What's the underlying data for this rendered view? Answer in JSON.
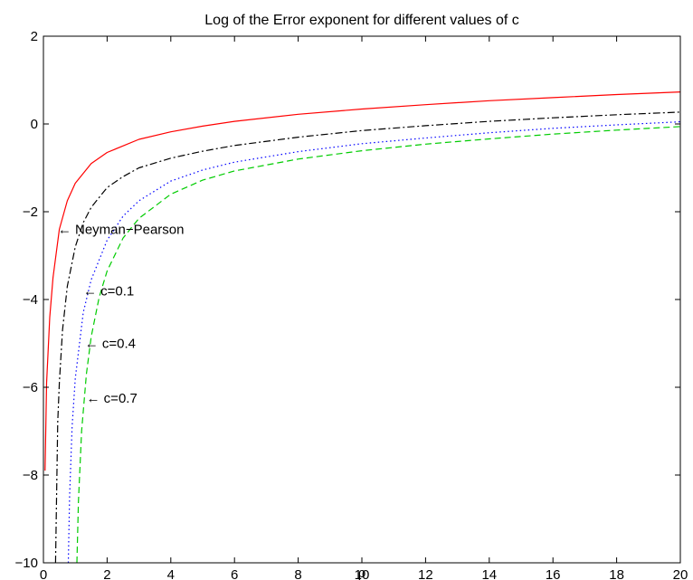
{
  "chart_data": {
    "type": "line",
    "title": "Log of the Error exponent for different values of c",
    "xlabel": "ρ",
    "ylabel": "",
    "xlim": [
      0,
      20
    ],
    "ylim": [
      -10,
      2
    ],
    "xticks": [
      0,
      2,
      4,
      6,
      8,
      10,
      12,
      14,
      16,
      18,
      20
    ],
    "yticks": [
      -10,
      -8,
      -6,
      -4,
      -2,
      0,
      2
    ],
    "xtick_labels": [
      "0",
      "2",
      "4",
      "6",
      "8",
      "10",
      "12",
      "14",
      "16",
      "18",
      "20"
    ],
    "ytick_labels": [
      "−10",
      "−8",
      "−6",
      "−4",
      "−2",
      "0",
      "2"
    ],
    "grid": false,
    "series": [
      {
        "name": "Neyman−Pearson",
        "color": "#ff0000",
        "dash": "solid",
        "x": [
          0.05,
          0.1,
          0.2,
          0.3,
          0.5,
          0.75,
          1,
          1.5,
          2,
          3,
          4,
          5,
          6,
          8,
          10,
          12,
          14,
          16,
          18,
          20
        ],
        "y": [
          -7.9,
          -5.9,
          -4.4,
          -3.5,
          -2.4,
          -1.75,
          -1.35,
          -0.9,
          -0.65,
          -0.35,
          -0.18,
          -0.05,
          0.06,
          0.22,
          0.34,
          0.44,
          0.53,
          0.6,
          0.67,
          0.73
        ]
      },
      {
        "name": "c=0.1",
        "color": "#000000",
        "dash": "dashdot",
        "x": [
          0.38,
          0.45,
          0.5,
          0.6,
          0.75,
          1,
          1.25,
          1.5,
          2,
          2.5,
          3,
          4,
          5,
          6,
          8,
          10,
          12,
          14,
          16,
          18,
          20
        ],
        "y": [
          -10,
          -6.8,
          -5.9,
          -4.7,
          -3.7,
          -2.8,
          -2.25,
          -1.9,
          -1.45,
          -1.2,
          -1.0,
          -0.78,
          -0.62,
          -0.49,
          -0.3,
          -0.15,
          -0.04,
          0.06,
          0.14,
          0.21,
          0.27
        ]
      },
      {
        "name": "c=0.4",
        "color": "#0000ff",
        "dash": "dotted",
        "x": [
          0.78,
          0.82,
          0.9,
          1,
          1.25,
          1.5,
          2,
          2.5,
          3,
          4,
          5,
          6,
          8,
          10,
          12,
          14,
          16,
          18,
          20
        ],
        "y": [
          -10,
          -8.5,
          -6.9,
          -5.8,
          -4.3,
          -3.55,
          -2.65,
          -2.1,
          -1.75,
          -1.3,
          -1.05,
          -0.87,
          -0.63,
          -0.45,
          -0.32,
          -0.2,
          -0.1,
          -0.02,
          0.05
        ]
      },
      {
        "name": "c=0.7",
        "color": "#00cc00",
        "dash": "dashed",
        "x": [
          1.05,
          1.1,
          1.2,
          1.35,
          1.5,
          1.75,
          2,
          2.5,
          3,
          4,
          5,
          6,
          8,
          10,
          12,
          14,
          16,
          18,
          20
        ],
        "y": [
          -10,
          -8.6,
          -7.0,
          -5.7,
          -4.85,
          -3.95,
          -3.35,
          -2.6,
          -2.15,
          -1.6,
          -1.28,
          -1.07,
          -0.8,
          -0.61,
          -0.46,
          -0.34,
          -0.23,
          -0.14,
          -0.06
        ]
      }
    ],
    "annotations": [
      {
        "text": "← Neyman−Pearson",
        "x": 0.45,
        "y": -2.4
      },
      {
        "text": "← c=0.1",
        "x": 1.25,
        "y": -3.8
      },
      {
        "text": "← c=0.4",
        "x": 1.3,
        "y": -5.0
      },
      {
        "text": "← c=0.7",
        "x": 1.35,
        "y": -6.25
      }
    ]
  }
}
